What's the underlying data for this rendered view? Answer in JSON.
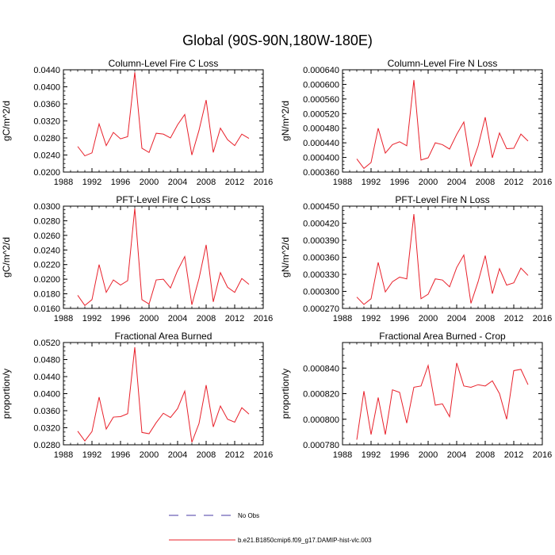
{
  "figure": {
    "title": "Global (90S-90N,180W-180E)"
  },
  "legend": {
    "entries": [
      {
        "label": "No Obs",
        "style": "dashed",
        "color": "#4a3aa6"
      },
      {
        "label": "b.e21.B1850cmip6.f09_g17.DAMIP-hist-vlc.003",
        "style": "solid",
        "color": "#e8202a"
      }
    ]
  },
  "chart_data": [
    {
      "type": "line",
      "title": "Column-Level Fire C Loss",
      "ylabel": "gC/m^2/d",
      "xlim": [
        1988,
        2016
      ],
      "ylim": [
        0.02,
        0.044
      ],
      "xticks": [
        "1988",
        "1992",
        "1996",
        "2000",
        "2004",
        "2008",
        "2012",
        "2016"
      ],
      "yticks": [
        "0.0200",
        "0.0240",
        "0.0280",
        "0.0320",
        "0.0360",
        "0.0400",
        "0.0440"
      ],
      "x": [
        1990,
        1991,
        1992,
        1993,
        1994,
        1995,
        1996,
        1997,
        1998,
        1999,
        2000,
        2001,
        2002,
        2003,
        2004,
        2005,
        2006,
        2007,
        2008,
        2009,
        2010,
        2011,
        2012,
        2013,
        2014
      ],
      "series": [
        {
          "name": "b.e21.B1850cmip6.f09_g17.DAMIP-hist-vlc.003",
          "color": "#e8202a",
          "values": [
            0.026,
            0.0238,
            0.0245,
            0.0313,
            0.0262,
            0.0293,
            0.0278,
            0.0283,
            0.0434,
            0.0256,
            0.0246,
            0.0291,
            0.0289,
            0.028,
            0.0311,
            0.0335,
            0.024,
            0.0298,
            0.0369,
            0.0246,
            0.0303,
            0.0276,
            0.0262,
            0.0289,
            0.0279
          ]
        }
      ]
    },
    {
      "type": "line",
      "title": "Column-Level Fire N Loss",
      "ylabel": "gN/m^2/d",
      "xlim": [
        1988,
        2016
      ],
      "ylim": [
        0.00036,
        0.00064
      ],
      "xticks": [
        "1988",
        "1992",
        "1996",
        "2000",
        "2004",
        "2008",
        "2012",
        "2016"
      ],
      "yticks": [
        "0.000360",
        "0.000400",
        "0.000440",
        "0.000480",
        "0.000520",
        "0.000560",
        "0.000600",
        "0.000640"
      ],
      "x": [
        1990,
        1991,
        1992,
        1993,
        1994,
        1995,
        1996,
        1997,
        1998,
        1999,
        2000,
        2001,
        2002,
        2003,
        2004,
        2005,
        2006,
        2007,
        2008,
        2009,
        2010,
        2011,
        2012,
        2013,
        2014
      ],
      "series": [
        {
          "name": "b.e21.B1850cmip6.f09_g17.DAMIP-hist-vlc.003",
          "color": "#e8202a",
          "values": [
            0.000396,
            0.00037,
            0.000386,
            0.00048,
            0.000412,
            0.000435,
            0.000443,
            0.000432,
            0.000612,
            0.000393,
            0.000399,
            0.00044,
            0.000435,
            0.000423,
            0.000463,
            0.000497,
            0.000375,
            0.000431,
            0.00051,
            0.000399,
            0.000467,
            0.000424,
            0.000425,
            0.000464,
            0.000445
          ]
        }
      ]
    },
    {
      "type": "line",
      "title": "PFT-Level Fire C Loss",
      "ylabel": "gC/m^2/d",
      "xlim": [
        1988,
        2016
      ],
      "ylim": [
        0.016,
        0.03
      ],
      "xticks": [
        "1988",
        "1992",
        "1996",
        "2000",
        "2004",
        "2008",
        "2012",
        "2016"
      ],
      "yticks": [
        "0.0160",
        "0.0180",
        "0.0200",
        "0.0220",
        "0.0240",
        "0.0260",
        "0.0280",
        "0.0300"
      ],
      "x": [
        1990,
        1991,
        1992,
        1993,
        1994,
        1995,
        1996,
        1997,
        1998,
        1999,
        2000,
        2001,
        2002,
        2003,
        2004,
        2005,
        2006,
        2007,
        2008,
        2009,
        2010,
        2011,
        2012,
        2013,
        2014
      ],
      "series": [
        {
          "name": "b.e21.B1850cmip6.f09_g17.DAMIP-hist-vlc.003",
          "color": "#e8202a",
          "values": [
            0.0178,
            0.0164,
            0.0172,
            0.022,
            0.0182,
            0.0199,
            0.0192,
            0.0198,
            0.0297,
            0.0172,
            0.0166,
            0.0199,
            0.02,
            0.0188,
            0.0212,
            0.0231,
            0.0165,
            0.0201,
            0.0247,
            0.0169,
            0.0209,
            0.0189,
            0.0182,
            0.0201,
            0.0193
          ]
        }
      ]
    },
    {
      "type": "line",
      "title": "PFT-Level Fire N Loss",
      "ylabel": "gN/m^2/d",
      "xlim": [
        1988,
        2016
      ],
      "ylim": [
        0.00027,
        0.00045
      ],
      "xticks": [
        "1988",
        "1992",
        "1996",
        "2000",
        "2004",
        "2008",
        "2012",
        "2016"
      ],
      "yticks": [
        "0.000270",
        "0.000300",
        "0.000330",
        "0.000360",
        "0.000390",
        "0.000420",
        "0.000450"
      ],
      "x": [
        1990,
        1991,
        1992,
        1993,
        1994,
        1995,
        1996,
        1997,
        1998,
        1999,
        2000,
        2001,
        2002,
        2003,
        2004,
        2005,
        2006,
        2007,
        2008,
        2009,
        2010,
        2011,
        2012,
        2013,
        2014
      ],
      "series": [
        {
          "name": "b.e21.B1850cmip6.f09_g17.DAMIP-hist-vlc.003",
          "color": "#e8202a",
          "values": [
            0.00029,
            0.000277,
            0.000287,
            0.000351,
            0.000299,
            0.000317,
            0.000325,
            0.000322,
            0.000436,
            0.000287,
            0.000295,
            0.000322,
            0.00032,
            0.000308,
            0.000342,
            0.000364,
            0.000279,
            0.000317,
            0.000363,
            0.000296,
            0.00034,
            0.000311,
            0.000315,
            0.000341,
            0.000328
          ]
        }
      ]
    },
    {
      "type": "line",
      "title": "Fractional Area Burned",
      "ylabel": "proportion/y",
      "xlim": [
        1988,
        2016
      ],
      "ylim": [
        0.028,
        0.052
      ],
      "xticks": [
        "1988",
        "1992",
        "1996",
        "2000",
        "2004",
        "2008",
        "2012",
        "2016"
      ],
      "yticks": [
        "0.0280",
        "0.0320",
        "0.0360",
        "0.0400",
        "0.0440",
        "0.0480",
        "0.0520"
      ],
      "x": [
        1990,
        1991,
        1992,
        1993,
        1994,
        1995,
        1996,
        1997,
        1998,
        1999,
        2000,
        2001,
        2002,
        2003,
        2004,
        2005,
        2006,
        2007,
        2008,
        2009,
        2010,
        2011,
        2012,
        2013,
        2014
      ],
      "series": [
        {
          "name": "b.e21.B1850cmip6.f09_g17.DAMIP-hist-vlc.003",
          "color": "#e8202a",
          "values": [
            0.0312,
            0.0289,
            0.0311,
            0.0392,
            0.0317,
            0.0345,
            0.0346,
            0.0353,
            0.0509,
            0.0309,
            0.0306,
            0.0332,
            0.0354,
            0.0344,
            0.0365,
            0.0406,
            0.0286,
            0.033,
            0.042,
            0.0322,
            0.0371,
            0.034,
            0.0333,
            0.0367,
            0.0352
          ]
        }
      ]
    },
    {
      "type": "line",
      "title": "Fractional Area Burned - Crop",
      "ylabel": "proportion/y",
      "xlim": [
        1988,
        2016
      ],
      "ylim": [
        0.00078,
        0.00086
      ],
      "xticks": [
        "1988",
        "1992",
        "1996",
        "2000",
        "2004",
        "2008",
        "2012",
        "2016"
      ],
      "yticks": [
        "0.000780",
        "0.000800",
        "0.000820",
        "0.000840"
      ],
      "x": [
        1990,
        1991,
        1992,
        1993,
        1994,
        1995,
        1996,
        1997,
        1998,
        1999,
        2000,
        2001,
        2002,
        2003,
        2004,
        2005,
        2006,
        2007,
        2008,
        2009,
        2010,
        2011,
        2012,
        2013,
        2014
      ],
      "series": [
        {
          "name": "b.e21.B1850cmip6.f09_g17.DAMIP-hist-vlc.003",
          "color": "#e8202a",
          "values": [
            0.000784,
            0.000822,
            0.000788,
            0.000817,
            0.000788,
            0.000823,
            0.000821,
            0.000797,
            0.000825,
            0.000826,
            0.000842,
            0.000811,
            0.000812,
            0.000802,
            0.000844,
            0.000826,
            0.000825,
            0.000827,
            0.000826,
            0.00083,
            0.00082,
            0.0008,
            0.000838,
            0.000839,
            0.000827
          ]
        }
      ]
    }
  ]
}
